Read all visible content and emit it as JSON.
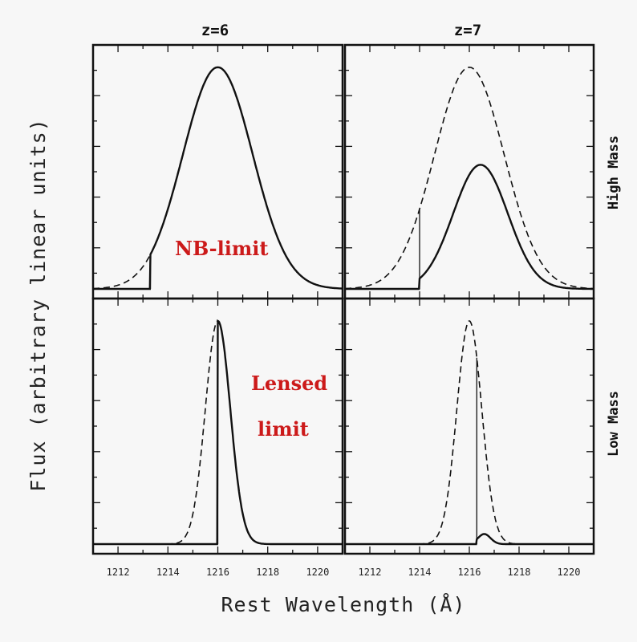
{
  "chart_data": {
    "type": "line",
    "layout": "2x2 grid",
    "ylabel": "Flux (arbitrary linear units)",
    "xlabel": "Rest Wavelength (Å)",
    "col_titles": [
      "z=6",
      "z=7"
    ],
    "row_labels": [
      "High Mass",
      "Low Mass"
    ],
    "xlim": [
      1211,
      1221
    ],
    "ylim": [
      0,
      1.05
    ],
    "x_ticks": [
      "1212",
      "1214",
      "1216",
      "1218",
      "1220"
    ],
    "y_tick_labels": "none",
    "grid": false,
    "annotations": {
      "nb_limit": "NB-limit",
      "lensed_limit_line1": "Lensed",
      "lensed_limit_line2": "limit"
    },
    "panels": [
      {
        "id": "z6-high-mass",
        "column": "z=6",
        "row": "High Mass",
        "cutoff_x": 1213.3,
        "series": [
          {
            "style": "dashed",
            "center": 1216,
            "sigma": 1.4,
            "amplitude": 1.0
          },
          {
            "style": "solid",
            "center": 1216,
            "sigma": 1.4,
            "amplitude": 1.0
          }
        ]
      },
      {
        "id": "z7-high-mass",
        "column": "z=7",
        "row": "High Mass",
        "cutoff_x": 1214,
        "series": [
          {
            "style": "dashed",
            "center": 1216,
            "sigma": 1.4,
            "amplitude": 1.0
          },
          {
            "style": "solid",
            "center": 1216.45,
            "sigma": 1.1,
            "amplitude": 0.56
          }
        ]
      },
      {
        "id": "z6-low-mass",
        "column": "z=6",
        "row": "Low Mass",
        "cutoff_x": 1216,
        "series": [
          {
            "style": "dashed",
            "center": 1216,
            "sigma": 0.5,
            "amplitude": 1.0
          },
          {
            "style": "solid",
            "center": 1216,
            "sigma": 0.5,
            "amplitude": 1.0
          }
        ]
      },
      {
        "id": "z7-low-mass",
        "column": "z=7",
        "row": "Low Mass",
        "cutoff_x": 1216.3,
        "series": [
          {
            "style": "dashed",
            "center": 1216,
            "sigma": 0.5,
            "amplitude": 1.0
          },
          {
            "style": "solid",
            "center": 1216.6,
            "sigma": 0.25,
            "amplitude": 0.045
          }
        ]
      }
    ]
  }
}
